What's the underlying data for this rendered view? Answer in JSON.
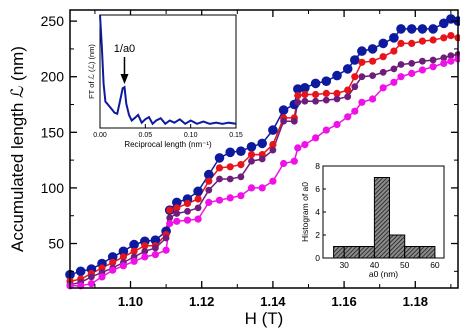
{
  "chart_data": [
    {
      "type": "line",
      "xlabel": "H (T)",
      "ylabel": "Accumulated length ℒ (nm)",
      "xlim": [
        1.083,
        1.192
      ],
      "ylim": [
        10,
        260
      ],
      "x_ticks": [
        1.1,
        1.12,
        1.14,
        1.16,
        1.18
      ],
      "x_tick_labels": [
        "1.10",
        "1.12",
        "1.14",
        "1.16",
        "1.18"
      ],
      "y_ticks": [
        50,
        100,
        150,
        200,
        250
      ],
      "y_tick_labels": [
        "50",
        "100",
        "150",
        "200",
        "250"
      ],
      "grid": false,
      "series": [
        {
          "color": "#0d1a9e",
          "x": [
            1.083,
            1.086,
            1.089,
            1.092,
            1.095,
            1.098,
            1.101,
            1.104,
            1.107,
            1.11,
            1.111,
            1.113,
            1.116,
            1.119,
            1.122,
            1.125,
            1.128,
            1.131,
            1.134,
            1.137,
            1.14,
            1.143,
            1.146,
            1.147,
            1.149,
            1.152,
            1.155,
            1.158,
            1.161,
            1.163,
            1.165,
            1.168,
            1.171,
            1.174,
            1.176,
            1.179,
            1.182,
            1.185,
            1.188,
            1.19,
            1.192
          ],
          "values": [
            22,
            25,
            27,
            32,
            38,
            43,
            49,
            52,
            53,
            61,
            80,
            87,
            90,
            97,
            112,
            127,
            132,
            133,
            137,
            140,
            152,
            170,
            175,
            189,
            190,
            194,
            196,
            201,
            207,
            215,
            223,
            225,
            230,
            235,
            243,
            243,
            243,
            243,
            248,
            252,
            250
          ]
        },
        {
          "color": "#e8141c",
          "x": [
            1.083,
            1.086,
            1.089,
            1.092,
            1.095,
            1.098,
            1.101,
            1.104,
            1.107,
            1.11,
            1.111,
            1.113,
            1.116,
            1.119,
            1.122,
            1.125,
            1.128,
            1.131,
            1.134,
            1.137,
            1.14,
            1.143,
            1.146,
            1.147,
            1.149,
            1.152,
            1.155,
            1.158,
            1.161,
            1.163,
            1.165,
            1.168,
            1.171,
            1.174,
            1.176,
            1.179,
            1.182,
            1.185,
            1.188,
            1.19,
            1.192
          ],
          "values": [
            16,
            18,
            23,
            28,
            33,
            38,
            43,
            48,
            48,
            58,
            80,
            82,
            86,
            90,
            106,
            118,
            119,
            121,
            130,
            130,
            139,
            163,
            163,
            183,
            184,
            184,
            185,
            185,
            188,
            200,
            213,
            214,
            218,
            223,
            230,
            230,
            232,
            233,
            235,
            237,
            235
          ]
        },
        {
          "color": "#6e1e7a",
          "x": [
            1.083,
            1.086,
            1.089,
            1.092,
            1.095,
            1.098,
            1.101,
            1.104,
            1.107,
            1.11,
            1.111,
            1.113,
            1.116,
            1.119,
            1.122,
            1.125,
            1.128,
            1.131,
            1.134,
            1.137,
            1.14,
            1.143,
            1.146,
            1.147,
            1.149,
            1.152,
            1.155,
            1.158,
            1.161,
            1.163,
            1.165,
            1.168,
            1.171,
            1.174,
            1.176,
            1.179,
            1.182,
            1.185,
            1.188,
            1.19,
            1.192
          ],
          "values": [
            13,
            15,
            20,
            24,
            28,
            33,
            38,
            43,
            46,
            55,
            73,
            77,
            79,
            82,
            98,
            108,
            108,
            110,
            124,
            126,
            134,
            160,
            160,
            177,
            178,
            178,
            179,
            180,
            182,
            191,
            200,
            201,
            204,
            207,
            211,
            212,
            214,
            215,
            217,
            219,
            220
          ]
        },
        {
          "color": "#f010e8",
          "x": [
            1.083,
            1.086,
            1.089,
            1.092,
            1.095,
            1.098,
            1.101,
            1.104,
            1.107,
            1.11,
            1.111,
            1.113,
            1.116,
            1.119,
            1.122,
            1.125,
            1.128,
            1.131,
            1.134,
            1.137,
            1.14,
            1.143,
            1.146,
            1.147,
            1.149,
            1.152,
            1.155,
            1.158,
            1.161,
            1.163,
            1.165,
            1.168,
            1.171,
            1.174,
            1.176,
            1.179,
            1.182,
            1.185,
            1.188,
            1.19,
            1.192
          ],
          "values": [
            12,
            12,
            14,
            20,
            26,
            30,
            34,
            38,
            40,
            44,
            68,
            70,
            71,
            72,
            87,
            89,
            91,
            93,
            100,
            100,
            106,
            122,
            124,
            136,
            139,
            145,
            152,
            157,
            164,
            169,
            177,
            180,
            190,
            195,
            200,
            203,
            206,
            209,
            212,
            214,
            216
          ]
        }
      ]
    },
    {
      "type": "line",
      "xlabel": "Reciprocal length (nm⁻¹)",
      "ylabel": "FT of ℒ (ℒ) (nm)",
      "xlim": [
        0,
        0.15
      ],
      "ylim": [
        0,
        1
      ],
      "x_ticks": [
        0.0,
        0.05,
        0.1,
        0.15
      ],
      "x_tick_labels": [
        "0.00",
        "0.05",
        "0.10",
        "0.15"
      ],
      "annotation": "1/a0",
      "annotation_x": 0.027,
      "series": [
        {
          "color": "#0d1a9e",
          "x": [
            0,
            0.002,
            0.004,
            0.006,
            0.008,
            0.01,
            0.013,
            0.016,
            0.019,
            0.022,
            0.025,
            0.027,
            0.029,
            0.032,
            0.035,
            0.038,
            0.042,
            0.046,
            0.05,
            0.054,
            0.058,
            0.062,
            0.067,
            0.072,
            0.077,
            0.082,
            0.088,
            0.094,
            0.1,
            0.107,
            0.114,
            0.121,
            0.128,
            0.135,
            0.142,
            0.15
          ],
          "values": [
            1.0,
            0.72,
            0.38,
            0.22,
            0.2,
            0.18,
            0.15,
            0.12,
            0.11,
            0.22,
            0.34,
            0.35,
            0.2,
            0.1,
            0.05,
            0.07,
            0.1,
            0.03,
            0.06,
            0.08,
            0.02,
            0.05,
            0.07,
            0.02,
            0.05,
            0.03,
            0.06,
            0.02,
            0.05,
            0.02,
            0.04,
            0.02,
            0.03,
            0.02,
            0.03,
            0.02
          ]
        }
      ]
    },
    {
      "type": "bar",
      "xlabel": "a0 (nm)",
      "ylabel": "Histogram of a0",
      "xlim": [
        23,
        63
      ],
      "ylim": [
        0,
        8
      ],
      "x_ticks": [
        30,
        40,
        50,
        60
      ],
      "x_tick_labels": [
        "30",
        "40",
        "50",
        "60"
      ],
      "y_ticks": [
        0,
        2,
        4,
        6,
        8
      ],
      "y_tick_labels": [
        "0",
        "2",
        "4",
        "6",
        "8"
      ],
      "bins": [
        [
          26.5,
          30
        ],
        [
          30,
          35
        ],
        [
          35,
          40
        ],
        [
          40,
          45
        ],
        [
          45,
          50
        ],
        [
          50,
          55
        ],
        [
          55,
          60
        ]
      ],
      "values": [
        1,
        1,
        1,
        7,
        2,
        1,
        1
      ]
    }
  ]
}
